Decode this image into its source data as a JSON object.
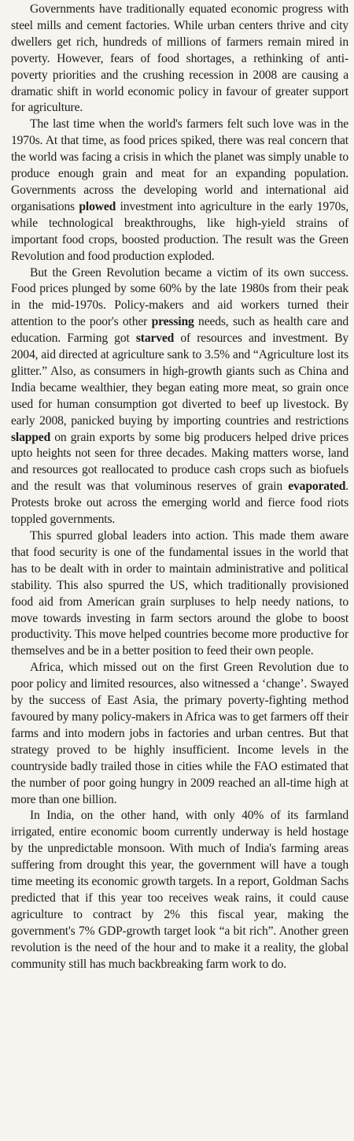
{
  "article": {
    "paragraphs": [
      [
        {
          "t": "Governments have traditionally equated economic progress with steel mills and cement factories. While urban centers thrive and city dwellers get rich, hundreds of millions of farmers remain mired in poverty. However, fears of food shortages, a rethinking of anti-poverty priorities and the crushing recession in 2008 are causing a dramatic shift in world economic policy in favour of greater support for agriculture."
        }
      ],
      [
        {
          "t": "The last time when the world's farmers felt such love was in the 1970s. At that time, as food prices spiked, there was real concern that the world was facing a crisis in which the planet was simply unable to produce enough grain and meat for an expanding population. Governments across the developing world and international aid organisations "
        },
        {
          "t": "plowed",
          "b": true
        },
        {
          "t": " investment into agriculture in the early 1970s, while technological breakthroughs, like high-yield strains of important food crops, boosted production. The result was the Green Revolution and food production exploded."
        }
      ],
      [
        {
          "t": "But the Green Revolution became a victim of its own success. Food prices plunged by some 60% by the late 1980s from their peak in the mid-1970s. Policy-makers and aid workers turned their attention to the poor's other "
        },
        {
          "t": "pressing",
          "b": true
        },
        {
          "t": " needs, such as health care and education. Farming got "
        },
        {
          "t": "starved",
          "b": true
        },
        {
          "t": " of resources and investment. By 2004, aid directed at agriculture sank to 3.5% and “Agriculture lost its glitter.” Also, as consumers in high-growth giants such as China and India became wealthier, they began eating more meat, so grain once used for human consumption got diverted to beef up livestock. By early 2008, panicked buying by importing countries and restrictions "
        },
        {
          "t": "slapped",
          "b": true
        },
        {
          "t": " on grain exports by some big producers helped drive prices upto heights not seen for three decades. Making matters worse, land and resources got reallocated to produce cash crops such as biofuels and the result was that voluminous reserves of grain "
        },
        {
          "t": "evaporated",
          "b": true
        },
        {
          "t": ". Protests broke out across the emerging world and fierce food riots toppled governments."
        }
      ],
      [
        {
          "t": "This spurred global leaders into action. This made them aware that food security is one of the fundamental issues in the world that has to be dealt with in order to maintain administrative and political stability. This also spurred the US, which traditionally provisioned food aid from American grain surpluses to help needy nations, to move towards investing in farm sectors around the globe to boost productivity. This move helped countries become more productive for themselves and be in a better position to feed their own people."
        }
      ],
      [
        {
          "t": "Africa, which missed out on the first Green Revolution due to poor policy and limited resources, also witnessed a ‘change’. Swayed by the success of East Asia, the primary poverty-fighting method favoured by many policy-makers in Africa was to get farmers off their farms and into modern jobs in factories and urban centres. But that strategy proved to be highly insufficient. Income levels in the countryside badly trailed those in cities while the FAO estimated that the number of poor going hungry in 2009 reached an all-time high at more than one billion."
        }
      ],
      [
        {
          "t": "In India, on the other hand, with only 40% of its farmland irrigated, entire economic boom currently underway is held hostage by the unpredictable monsoon. With much of India's farming areas suffering from drought this year, the government will have a tough time meeting its economic growth targets. In a report, Goldman Sachs predicted that if this year too receives weak rains, it could cause agriculture to contract by 2% this fiscal year, making the government's 7% GDP-growth target look “a bit rich”. Another green revolution is the need of the hour and to make it a reality, the global community still has much backbreaking farm work to do."
        }
      ]
    ]
  }
}
